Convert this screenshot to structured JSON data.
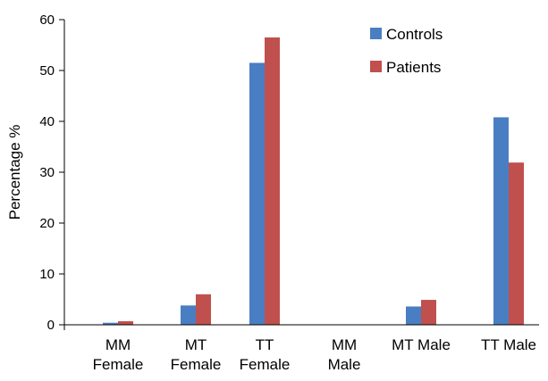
{
  "chart_data": {
    "type": "bar",
    "title": "",
    "xlabel": "",
    "ylabel": "Percentage %",
    "ylim": [
      0,
      60
    ],
    "yticks": [
      0,
      10,
      20,
      30,
      40,
      50,
      60
    ],
    "grid": false,
    "legend_position": "top-right",
    "categories": [
      [
        "MM",
        "Female"
      ],
      [
        "MT",
        "Female"
      ],
      [
        "TT",
        "Female"
      ],
      [
        "MM",
        "Male"
      ],
      [
        "MT Male"
      ],
      [
        "TT Male"
      ]
    ],
    "series": [
      {
        "name": "Controls",
        "color": "#4A7EC2",
        "values": [
          0.4,
          3.8,
          51.5,
          0,
          3.6,
          40.8
        ]
      },
      {
        "name": "Patients",
        "color": "#C0504D",
        "values": [
          0.7,
          6.0,
          56.5,
          0,
          4.9,
          31.9
        ]
      }
    ]
  }
}
